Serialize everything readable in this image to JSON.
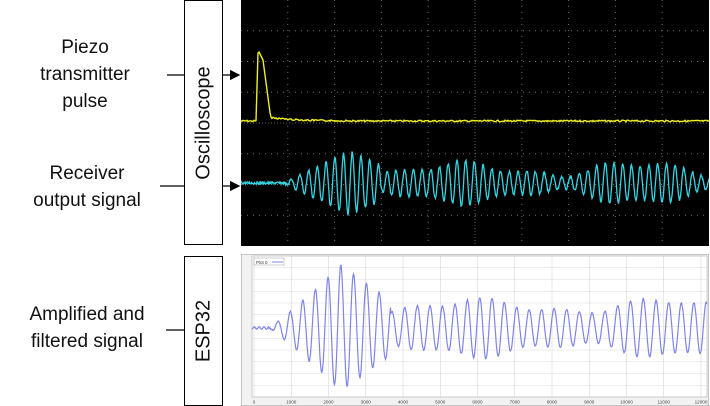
{
  "labels": {
    "piezo": [
      "Piezo",
      "transmitter",
      "pulse"
    ],
    "receiver": [
      "Receiver",
      "output signal"
    ],
    "amplified": [
      "Amplified and",
      "filtered signal"
    ]
  },
  "boxes": {
    "oscilloscope": "Oscilloscope",
    "esp32": "ESP32"
  },
  "plot_legend": "Plot 0",
  "plot_x_ticks": [
    "0",
    "1000",
    "2000",
    "3000",
    "4000",
    "5000",
    "6000",
    "7000",
    "8000",
    "9000",
    "10000",
    "11000",
    "12000"
  ],
  "colors": {
    "scope_background": "#000000",
    "scope_grid": "#6e6e6e",
    "transmit_trace": "#f0ef1e",
    "receive_trace": "#32d6e3",
    "esp_trace": "#7e84e8",
    "esp_background": "#ffffff"
  }
}
